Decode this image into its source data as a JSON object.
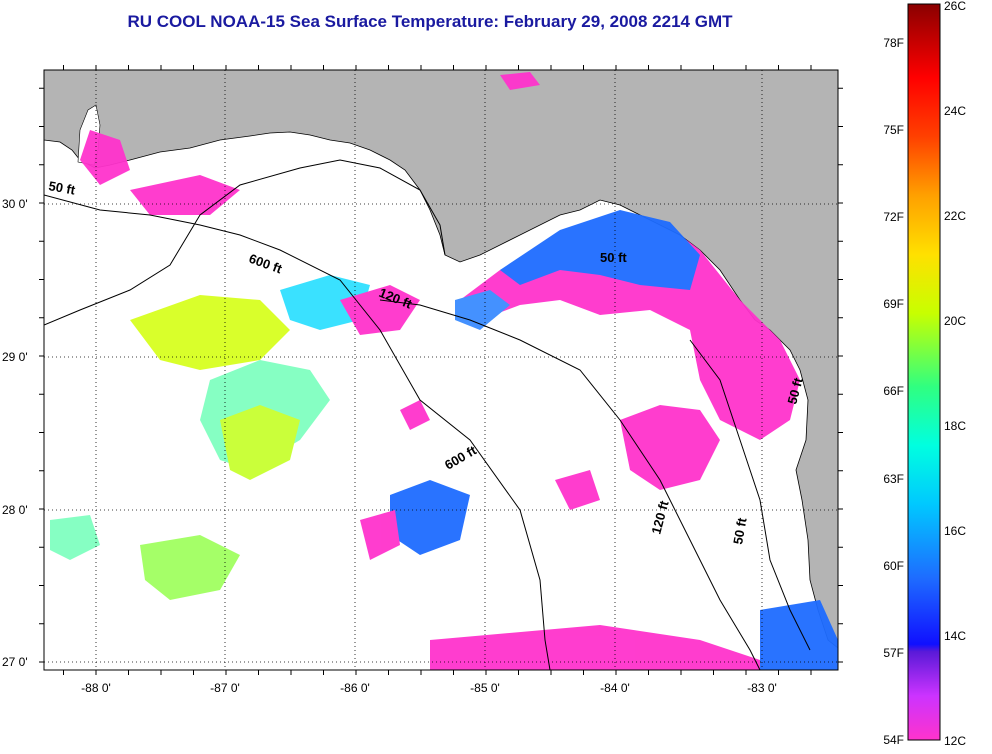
{
  "title": "RU COOL  NOAA-15  Sea Surface Temperature:  February 29, 2008 2214 GMT",
  "lon_ticks": [
    "-88 0'",
    "-87 0'",
    "-86 0'",
    "-85 0'",
    "-84 0'",
    "-83 0'"
  ],
  "lat_ticks": [
    "30 0'",
    "29 0'",
    "28 0'",
    "27 0'"
  ],
  "contours": [
    "50 ft",
    "600 ft",
    "120 ft",
    "50 ft",
    "600 ft",
    "120 ft",
    "50 ft",
    "50 ft"
  ],
  "colorbar": {
    "fahrenheit": [
      "78F",
      "75F",
      "72F",
      "69F",
      "66F",
      "63F",
      "60F",
      "57F",
      "54F"
    ],
    "celsius": [
      "26C",
      "24C",
      "22C",
      "20C",
      "18C",
      "16C",
      "14C",
      "12C"
    ]
  },
  "colors": {
    "land": "#b4b4b4",
    "water": "#ffffff",
    "title": "#1a1aa0"
  }
}
